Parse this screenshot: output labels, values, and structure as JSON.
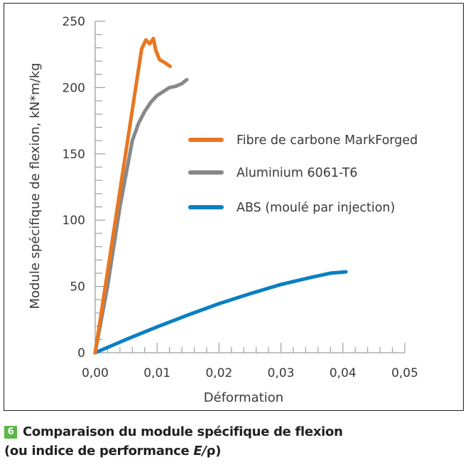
{
  "figure": {
    "number": "6",
    "caption_line1": "Comparaison du module spécifique de flexion",
    "caption_line2_prefix": "(ou indice de performance ",
    "caption_line2_symbol": "E",
    "caption_line2_sep": "/",
    "caption_line2_rho": "ρ",
    "caption_line2_suffix": ")",
    "badge_color": "#5cb847"
  },
  "chart_data": {
    "type": "line",
    "title": "",
    "xlabel": "Déformation",
    "ylabel": "Module spécifique de flexion, kN*m/kg",
    "xlim": [
      0,
      0.05
    ],
    "ylim": [
      0,
      250
    ],
    "x_ticks": [
      "0,00",
      "0,01",
      "0,02",
      "0,03",
      "0,04",
      "0,05"
    ],
    "x_tick_values": [
      0,
      0.01,
      0.02,
      0.03,
      0.04,
      0.05
    ],
    "y_ticks": [
      "0",
      "50",
      "100",
      "150",
      "200",
      "250"
    ],
    "y_tick_values": [
      0,
      50,
      100,
      150,
      200,
      250
    ],
    "minor_x_step": 0.002,
    "minor_y_step": 10,
    "grid": false,
    "legend_position": "right-center",
    "series": [
      {
        "name": "Fibre de carbone MarkForged",
        "color": "#e87722",
        "points": [
          [
            0,
            0
          ],
          [
            0.0075,
            229
          ],
          [
            0.0082,
            236
          ],
          [
            0.0088,
            233
          ],
          [
            0.0094,
            237
          ],
          [
            0.0098,
            228
          ],
          [
            0.0104,
            221
          ],
          [
            0.0112,
            219
          ],
          [
            0.0121,
            216
          ]
        ]
      },
      {
        "name": "Aluminium 6061-T6",
        "color": "#87888a",
        "points": [
          [
            0,
            0
          ],
          [
            0.002,
            50
          ],
          [
            0.004,
            110
          ],
          [
            0.006,
            160
          ],
          [
            0.007,
            173
          ],
          [
            0.008,
            182
          ],
          [
            0.009,
            189
          ],
          [
            0.01,
            194
          ],
          [
            0.011,
            197
          ],
          [
            0.012,
            200
          ],
          [
            0.013,
            201
          ],
          [
            0.014,
            203
          ],
          [
            0.0148,
            206
          ]
        ]
      },
      {
        "name": "ABS (moulé par injection)",
        "color": "#0a7fc2",
        "points": [
          [
            0,
            0
          ],
          [
            0.005,
            10
          ],
          [
            0.01,
            19.5
          ],
          [
            0.015,
            28.5
          ],
          [
            0.02,
            37
          ],
          [
            0.025,
            44.5
          ],
          [
            0.03,
            51.5
          ],
          [
            0.035,
            57
          ],
          [
            0.038,
            60
          ],
          [
            0.0405,
            61
          ]
        ]
      }
    ]
  }
}
